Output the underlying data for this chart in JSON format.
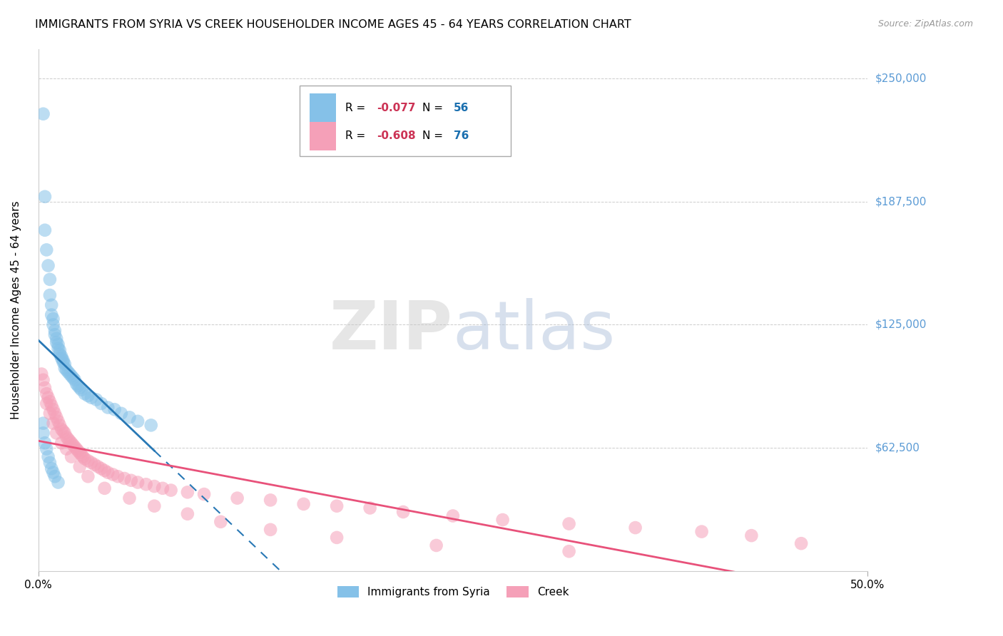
{
  "title": "IMMIGRANTS FROM SYRIA VS CREEK HOUSEHOLDER INCOME AGES 45 - 64 YEARS CORRELATION CHART",
  "source": "Source: ZipAtlas.com",
  "ylabel": "Householder Income Ages 45 - 64 years",
  "ytick_labels": [
    "$62,500",
    "$125,000",
    "$187,500",
    "$250,000"
  ],
  "ytick_values": [
    62500,
    125000,
    187500,
    250000
  ],
  "ylim": [
    0,
    265000
  ],
  "xlim": [
    0.0,
    0.5
  ],
  "series1_label": "Immigrants from Syria",
  "series1_R": "-0.077",
  "series1_N": "56",
  "series1_color": "#85c1e8",
  "series1_line_color": "#2878b5",
  "series2_label": "Creek",
  "series2_R": "-0.608",
  "series2_N": "76",
  "series2_color": "#f5a0b8",
  "series2_line_color": "#e8517a",
  "syria_x": [
    0.003,
    0.004,
    0.004,
    0.005,
    0.006,
    0.007,
    0.007,
    0.008,
    0.008,
    0.009,
    0.009,
    0.01,
    0.01,
    0.011,
    0.011,
    0.012,
    0.012,
    0.013,
    0.013,
    0.014,
    0.014,
    0.015,
    0.015,
    0.016,
    0.016,
    0.017,
    0.018,
    0.019,
    0.02,
    0.021,
    0.022,
    0.023,
    0.024,
    0.025,
    0.026,
    0.028,
    0.03,
    0.032,
    0.035,
    0.038,
    0.042,
    0.046,
    0.05,
    0.055,
    0.06,
    0.068,
    0.003,
    0.003,
    0.004,
    0.005,
    0.006,
    0.007,
    0.008,
    0.009,
    0.01,
    0.012
  ],
  "syria_y": [
    232000,
    190000,
    173000,
    163000,
    155000,
    148000,
    140000,
    135000,
    130000,
    128000,
    125000,
    122000,
    120000,
    118000,
    116000,
    115000,
    113000,
    112000,
    110000,
    109000,
    108000,
    107000,
    106000,
    105000,
    103000,
    102000,
    101000,
    100000,
    99000,
    98000,
    97000,
    95000,
    94000,
    93000,
    92000,
    90000,
    89000,
    88000,
    87000,
    85000,
    83000,
    82000,
    80000,
    78000,
    76000,
    74000,
    75000,
    70000,
    65000,
    62000,
    58000,
    55000,
    52000,
    50000,
    48000,
    45000
  ],
  "creek_x": [
    0.002,
    0.003,
    0.004,
    0.005,
    0.006,
    0.007,
    0.008,
    0.009,
    0.01,
    0.011,
    0.012,
    0.013,
    0.014,
    0.015,
    0.016,
    0.017,
    0.018,
    0.019,
    0.02,
    0.021,
    0.022,
    0.023,
    0.024,
    0.025,
    0.026,
    0.027,
    0.028,
    0.03,
    0.032,
    0.034,
    0.036,
    0.038,
    0.04,
    0.042,
    0.045,
    0.048,
    0.052,
    0.056,
    0.06,
    0.065,
    0.07,
    0.075,
    0.08,
    0.09,
    0.1,
    0.12,
    0.14,
    0.16,
    0.18,
    0.2,
    0.22,
    0.25,
    0.28,
    0.32,
    0.36,
    0.4,
    0.43,
    0.46,
    0.005,
    0.007,
    0.009,
    0.011,
    0.014,
    0.017,
    0.02,
    0.025,
    0.03,
    0.04,
    0.055,
    0.07,
    0.09,
    0.11,
    0.14,
    0.18,
    0.24,
    0.32
  ],
  "creek_y": [
    100000,
    97000,
    93000,
    90000,
    88000,
    86000,
    84000,
    82000,
    80000,
    78000,
    76000,
    74000,
    72000,
    71000,
    70000,
    68000,
    67000,
    66000,
    65000,
    64000,
    63000,
    62000,
    61000,
    60000,
    59000,
    58000,
    57000,
    56000,
    55000,
    54000,
    53000,
    52000,
    51000,
    50000,
    49000,
    48000,
    47000,
    46000,
    45000,
    44000,
    43000,
    42000,
    41000,
    40000,
    39000,
    37000,
    36000,
    34000,
    33000,
    32000,
    30000,
    28000,
    26000,
    24000,
    22000,
    20000,
    18000,
    14000,
    85000,
    80000,
    75000,
    70000,
    65000,
    62000,
    58000,
    53000,
    48000,
    42000,
    37000,
    33000,
    29000,
    25000,
    21000,
    17000,
    13000,
    10000
  ]
}
